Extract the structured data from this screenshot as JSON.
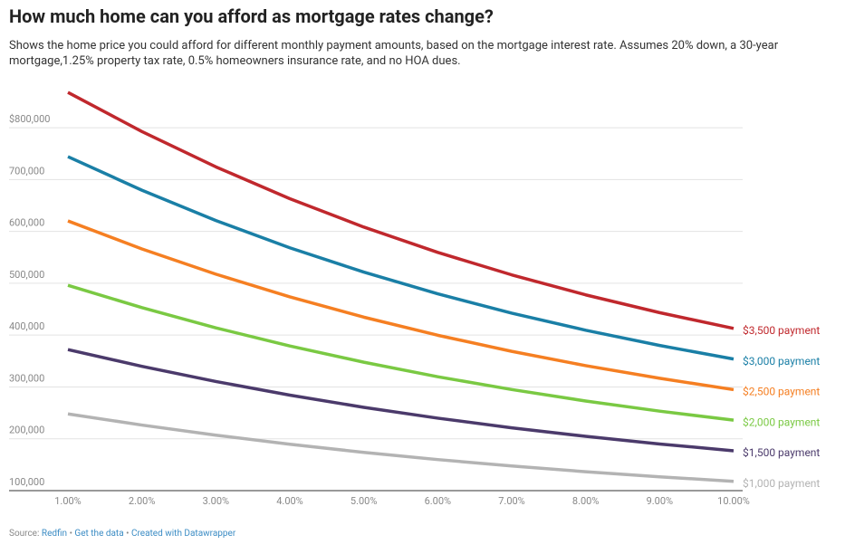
{
  "chart_data": {
    "type": "line",
    "title": "How much home can you afford as mortgage rates change?",
    "subtitle": "Shows the home price you could afford for different monthly payment amounts, based on the mortgage interest rate. Assumes 20% down, a 30-year mortgage,1.25% property tax rate, 0.5% homeowners insurance rate, and no HOA dues.",
    "x": [
      1,
      2,
      3,
      4,
      5,
      6,
      7,
      8,
      9,
      10
    ],
    "xlim": [
      1,
      10
    ],
    "xticks": [
      {
        "value": 1,
        "label": "1.00%"
      },
      {
        "value": 2,
        "label": "2.00%"
      },
      {
        "value": 3,
        "label": "3.00%"
      },
      {
        "value": 4,
        "label": "4.00%"
      },
      {
        "value": 5,
        "label": "5.00%"
      },
      {
        "value": 6,
        "label": "6.00%"
      },
      {
        "value": 7,
        "label": "7.00%"
      },
      {
        "value": 8,
        "label": "8.00%"
      },
      {
        "value": 9,
        "label": "9.00%"
      },
      {
        "value": 10,
        "label": "10.00%"
      }
    ],
    "ylim": [
      100000,
      870000
    ],
    "yticks": [
      {
        "value": 100000,
        "label": "100,000"
      },
      {
        "value": 200000,
        "label": "200,000"
      },
      {
        "value": 300000,
        "label": "300,000"
      },
      {
        "value": 400000,
        "label": "400,000"
      },
      {
        "value": 500000,
        "label": "500,000"
      },
      {
        "value": 600000,
        "label": "600,000"
      },
      {
        "value": 700000,
        "label": "700,000"
      },
      {
        "value": 800000,
        "label": "$800,000"
      }
    ],
    "grid": true,
    "series": [
      {
        "name": "$1,000 payment",
        "color": "#b3b3b3",
        "values": [
          248000,
          226500,
          207000,
          189500,
          173800,
          159900,
          147500,
          136500,
          126700,
          117900
        ]
      },
      {
        "name": "$1,500 payment",
        "color": "#4b3a6b",
        "values": [
          372100,
          339700,
          310500,
          284200,
          260700,
          239800,
          221200,
          204700,
          190000,
          176900
        ]
      },
      {
        "name": "$2,000 payment",
        "color": "#7ac943",
        "values": [
          496100,
          453000,
          414000,
          379000,
          347700,
          319700,
          295000,
          272900,
          253300,
          235900
        ]
      },
      {
        "name": "$2,500 payment",
        "color": "#f57f22",
        "values": [
          620200,
          566200,
          517500,
          473700,
          434600,
          399700,
          368700,
          341100,
          316700,
          294800
        ]
      },
      {
        "name": "$3,000 payment",
        "color": "#1a7fa6",
        "values": [
          744200,
          679500,
          621000,
          568400,
          521500,
          479600,
          442400,
          409400,
          380000,
          353800
        ]
      },
      {
        "name": "$3,500 payment",
        "color": "#c0282d",
        "values": [
          868200,
          792700,
          724500,
          663100,
          608400,
          559500,
          516200,
          477600,
          443300,
          412800
        ]
      }
    ],
    "source_label": "Source:",
    "source": "Redfin",
    "separator": "•",
    "data_link": "Get the data",
    "credit": "Created with Datawrapper"
  }
}
